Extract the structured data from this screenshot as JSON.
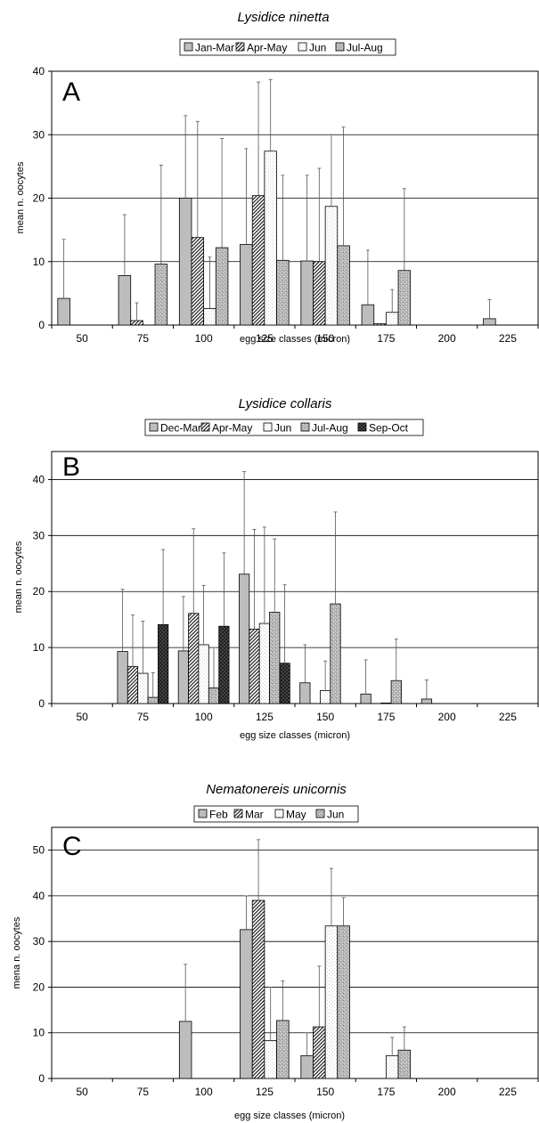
{
  "chart_data": [
    {
      "type": "bar",
      "panel_letter": "A",
      "title": "Lysidice ninetta",
      "xlabel": "egg size classes (micron)",
      "ylabel": "mean n. oocytes",
      "ylim": [
        0,
        40
      ],
      "yticks": [
        "0",
        "10",
        "20",
        "30",
        "40"
      ],
      "categories": [
        "50",
        "75",
        "100",
        "125",
        "150",
        "175",
        "200",
        "225"
      ],
      "grid": true,
      "legend_position": "top",
      "series": [
        {
          "name": "Jan-Mar",
          "pattern": "solid-gray",
          "values": [
            4.2,
            7.8,
            20.0,
            12.7,
            10.1,
            3.2,
            0,
            1.0
          ],
          "errors": [
            9.3,
            9.6,
            13.0,
            15.1,
            13.5,
            8.6,
            0,
            3.0
          ]
        },
        {
          "name": "Apr-May",
          "pattern": "diagonal",
          "values": [
            0,
            0.7,
            13.8,
            20.4,
            10.0,
            0.2,
            0,
            0
          ],
          "errors": [
            0,
            2.8,
            18.3,
            17.9,
            14.7,
            0,
            0,
            0
          ]
        },
        {
          "name": "Jun",
          "pattern": "dotted-white",
          "values": [
            0,
            0,
            2.6,
            27.4,
            18.7,
            2.0,
            0,
            0
          ],
          "errors": [
            0,
            0,
            8.1,
            11.3,
            11.3,
            3.6,
            0,
            0
          ]
        },
        {
          "name": "Jul-Aug",
          "pattern": "speckled-gray",
          "values": [
            0,
            9.6,
            12.2,
            10.2,
            12.5,
            8.6,
            0,
            0
          ],
          "errors": [
            0,
            15.6,
            17.2,
            13.4,
            18.7,
            12.9,
            0,
            0
          ]
        }
      ]
    },
    {
      "type": "bar",
      "panel_letter": "B",
      "title": "Lysidice collaris",
      "xlabel": "egg size classes (micron)",
      "ylabel": "mean n. oocytes",
      "ylim": [
        0,
        45
      ],
      "yticks": [
        "0",
        "10",
        "20",
        "30",
        "40"
      ],
      "categories": [
        "50",
        "75",
        "100",
        "125",
        "150",
        "175",
        "200",
        "225"
      ],
      "grid": true,
      "legend_position": "top",
      "series": [
        {
          "name": "Dec-Mar",
          "pattern": "solid-gray",
          "values": [
            0,
            9.3,
            9.4,
            23.1,
            3.7,
            1.7,
            0.8,
            0
          ],
          "errors": [
            0,
            11.1,
            9.7,
            18.3,
            6.8,
            6.1,
            3.4,
            0
          ]
        },
        {
          "name": "Apr-May",
          "pattern": "diagonal",
          "values": [
            0,
            6.6,
            16.1,
            13.3,
            0,
            0,
            0,
            0
          ],
          "errors": [
            0,
            9.2,
            15.1,
            17.8,
            0,
            0,
            0,
            0
          ]
        },
        {
          "name": "Jun",
          "pattern": "dotted-white",
          "values": [
            0,
            5.4,
            10.5,
            14.3,
            2.3,
            0.1,
            0,
            0
          ],
          "errors": [
            0,
            9.3,
            10.6,
            17.2,
            5.3,
            0,
            0,
            0
          ]
        },
        {
          "name": "Jul-Aug",
          "pattern": "speckled-gray",
          "values": [
            0,
            1.1,
            2.8,
            16.3,
            17.8,
            4.1,
            0,
            0
          ],
          "errors": [
            0,
            4.4,
            7.2,
            13.1,
            16.4,
            7.4,
            0,
            0
          ]
        },
        {
          "name": "Sep-Oct",
          "pattern": "crosshatch-dark",
          "values": [
            0,
            14.1,
            13.8,
            7.2,
            0,
            0,
            0,
            0
          ],
          "errors": [
            0,
            13.4,
            13.1,
            14.0,
            0,
            0,
            0,
            0
          ]
        }
      ]
    },
    {
      "type": "bar",
      "panel_letter": "C",
      "title": "Nematonereis unicornis",
      "xlabel": "egg size classes (micron)",
      "ylabel": "mena n. oocytes",
      "ylim": [
        0,
        55
      ],
      "yticks": [
        "0",
        "10",
        "20",
        "30",
        "40",
        "50"
      ],
      "categories": [
        "50",
        "75",
        "100",
        "125",
        "150",
        "175",
        "200",
        "225"
      ],
      "grid": true,
      "legend_position": "top",
      "series": [
        {
          "name": "Feb",
          "pattern": "solid-gray",
          "values": [
            0,
            0,
            12.5,
            32.6,
            5.0,
            0,
            0,
            0
          ],
          "errors": [
            0,
            0,
            12.5,
            7.4,
            5.0,
            0,
            0,
            0
          ]
        },
        {
          "name": "Mar",
          "pattern": "diagonal",
          "values": [
            0,
            0,
            0,
            39.0,
            11.3,
            0,
            0,
            0
          ],
          "errors": [
            0,
            0,
            0,
            13.3,
            13.3,
            0,
            0,
            0
          ]
        },
        {
          "name": "May",
          "pattern": "dotted-white",
          "values": [
            0,
            0,
            0,
            8.3,
            33.4,
            5.0,
            0,
            0
          ],
          "errors": [
            0,
            0,
            0,
            11.7,
            12.6,
            4.0,
            0,
            0
          ]
        },
        {
          "name": "Jun",
          "pattern": "speckled-gray",
          "values": [
            0,
            0,
            0,
            12.7,
            33.4,
            6.2,
            0,
            0
          ],
          "errors": [
            0,
            0,
            0,
            8.7,
            6.2,
            5.1,
            0,
            0
          ]
        }
      ]
    }
  ]
}
